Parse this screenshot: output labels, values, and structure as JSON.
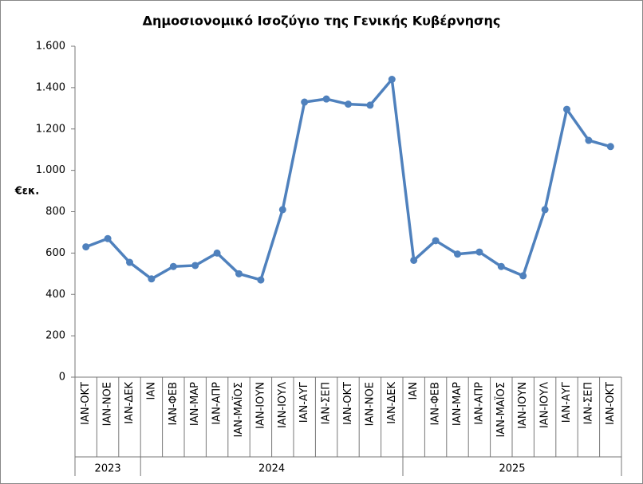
{
  "chart_data": {
    "type": "line",
    "title": "Δημοσιονομικό Ισοζύγιο της Γενικής Κυβέρνησης",
    "y_label": "€εκ.",
    "category_groups": [
      {
        "label": "2023",
        "categories": [
          "ΙΑΝ-ΟΚΤ",
          "ΙΑΝ-ΝΟΕ",
          "ΙΑΝ-ΔΕΚ"
        ]
      },
      {
        "label": "2024",
        "categories": [
          "ΙΑΝ",
          "ΙΑΝ-ΦΕΒ",
          "ΙΑΝ-ΜΑΡ",
          "ΙΑΝ-ΑΠΡ",
          "ΙΑΝ-ΜΑΪΟΣ",
          "ΙΑΝ-ΙΟΥΝ",
          "ΙΑΝ-ΙΟΥΛ",
          "ΙΑΝ-ΑΥΓ",
          "ΙΑΝ-ΣΕΠ",
          "ΙΑΝ-ΟΚΤ",
          "ΙΑΝ-ΝΟΕ",
          "ΙΑΝ-ΔΕΚ"
        ]
      },
      {
        "label": "2025",
        "categories": [
          "ΙΑΝ",
          "ΙΑΝ-ΦΕΒ",
          "ΙΑΝ-ΜΑΡ",
          "ΙΑΝ-ΑΠΡ",
          "ΙΑΝ-ΜΑΪΟΣ",
          "ΙΑΝ-ΙΟΥΝ",
          "ΙΑΝ-ΙΟΥΛ",
          "ΙΑΝ-ΑΥΓ",
          "ΙΑΝ-ΣΕΠ",
          "ΙΑΝ-ΟΚΤ"
        ]
      }
    ],
    "values": [
      630,
      670,
      555,
      475,
      535,
      540,
      600,
      500,
      470,
      810,
      1330,
      1345,
      1320,
      1315,
      1440,
      565,
      660,
      595,
      605,
      535,
      490,
      810,
      1295,
      1145,
      1115
    ],
    "color": "#4f81bd",
    "ylim": [
      0,
      1600
    ],
    "yticks": [
      0,
      200,
      400,
      600,
      800,
      {
        "value": 1000,
        "label": "1.000"
      },
      {
        "value": 1200,
        "label": "1.200"
      },
      {
        "value": 1400,
        "label": "1.400"
      },
      {
        "value": 1600,
        "label": "1.600"
      }
    ],
    "grid": false
  }
}
